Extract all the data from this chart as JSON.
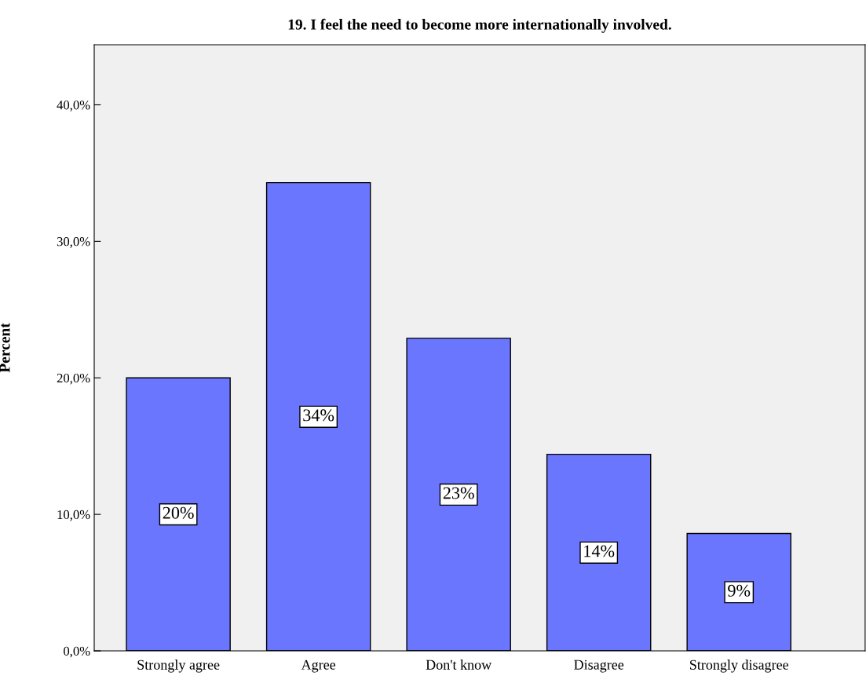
{
  "chart_data": {
    "type": "bar",
    "title": "19. I feel the need to become more internationally involved.",
    "ylabel": "Percent",
    "categories": [
      "Strongly agree",
      "Agree",
      "Don't know",
      "Disagree",
      "Strongly disagree"
    ],
    "values": [
      20.0,
      34.3,
      22.9,
      14.4,
      8.6
    ],
    "value_labels": [
      "20%",
      "34%",
      "23%",
      "14%",
      "9%"
    ],
    "color": "#6b76ff",
    "ylim": [
      0,
      44.4
    ],
    "yticks": [
      {
        "value": 0,
        "label": "0,0%"
      },
      {
        "value": 10,
        "label": "10,0%"
      },
      {
        "value": 20,
        "label": "20,0%"
      },
      {
        "value": 30,
        "label": "30,0%"
      },
      {
        "value": 40,
        "label": "40,0%"
      }
    ],
    "grid": false
  }
}
